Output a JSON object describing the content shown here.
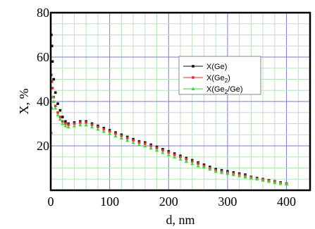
{
  "chart_data": {
    "type": "scatter",
    "xlabel": "d, nm",
    "ylabel": "X, %",
    "xlim": [
      0,
      440
    ],
    "ylim": [
      0,
      80
    ],
    "x_ticks": [
      0,
      100,
      200,
      300,
      400
    ],
    "y_ticks": [
      20,
      40,
      60,
      80
    ],
    "grid": true,
    "legend_position": "center-right",
    "legend": [
      {
        "prefix": "X(Ge",
        "sub": "",
        "suffix": ")"
      },
      {
        "prefix": "X(Ge",
        "sub": "2",
        "suffix": ")"
      },
      {
        "prefix": "X(Ge",
        "sub": "2",
        "suffix": "/Ge)"
      }
    ],
    "series": [
      {
        "color": "#111111",
        "x": [
          1,
          2,
          3,
          5,
          8,
          12,
          16,
          20,
          25,
          30,
          40,
          50,
          60,
          70,
          80,
          90,
          100,
          110,
          120,
          130,
          140,
          150,
          160,
          170,
          180,
          190,
          200,
          210,
          220,
          230,
          240,
          250,
          260,
          270,
          280,
          290,
          300,
          310,
          320,
          330,
          340,
          350,
          360,
          370,
          380,
          390,
          400
        ],
        "y": [
          70,
          65,
          58,
          50,
          44,
          39,
          36,
          33,
          31,
          30,
          30.5,
          31,
          31,
          30,
          29,
          28,
          27,
          26,
          25,
          24,
          23,
          22,
          21.5,
          20.5,
          19.5,
          18.5,
          17.5,
          16.5,
          15.5,
          14.5,
          13.5,
          12.5,
          11.5,
          10.5,
          9.5,
          9,
          8.5,
          8,
          7.5,
          7,
          6,
          5.5,
          5,
          4.5,
          4,
          3.5,
          3
        ]
      },
      {
        "color": "#e03030",
        "x": [
          1,
          2,
          3,
          5,
          8,
          12,
          16,
          20,
          25,
          30,
          40,
          50,
          60,
          70,
          80,
          90,
          100,
          110,
          120,
          130,
          140,
          150,
          160,
          170,
          180,
          190,
          200,
          210,
          220,
          230,
          240,
          250,
          260,
          270,
          280,
          290,
          300,
          310,
          320,
          330,
          340,
          350,
          360,
          370,
          380,
          390,
          400
        ],
        "y": [
          52,
          49,
          46,
          42,
          38,
          35,
          33,
          31,
          30,
          29.5,
          30,
          30.5,
          30.5,
          29.5,
          28.5,
          27.5,
          26.5,
          25.5,
          24.5,
          23.5,
          22.5,
          21.5,
          21,
          20,
          19,
          18,
          17,
          16,
          15,
          14,
          13,
          12,
          11,
          10,
          9,
          8.5,
          8,
          7.5,
          7,
          6.5,
          5.8,
          5.2,
          4.8,
          4.3,
          3.8,
          3.3,
          3
        ]
      },
      {
        "color": "#33dd33",
        "x": [
          1,
          2,
          3,
          5,
          8,
          12,
          16,
          20,
          25,
          30,
          40,
          50,
          60,
          70,
          80,
          90,
          100,
          110,
          120,
          130,
          140,
          150,
          160,
          170,
          180,
          190,
          200,
          210,
          220,
          230,
          240,
          250,
          260,
          270,
          280,
          290,
          300,
          310,
          320,
          330,
          340,
          350,
          360,
          370,
          380,
          390,
          400
        ],
        "y": [
          26,
          37,
          42,
          40,
          37,
          34,
          32,
          30,
          29,
          28.5,
          29,
          29.5,
          29.5,
          28.5,
          27.5,
          26.5,
          25.5,
          24.5,
          23.5,
          22.5,
          21.5,
          20.5,
          20,
          19,
          18,
          17,
          16,
          15,
          14,
          13,
          12,
          11,
          10.5,
          9.5,
          8.5,
          8,
          7.5,
          7,
          6.5,
          6,
          5.5,
          5,
          4.5,
          4,
          3.5,
          3,
          2.8
        ]
      }
    ]
  }
}
